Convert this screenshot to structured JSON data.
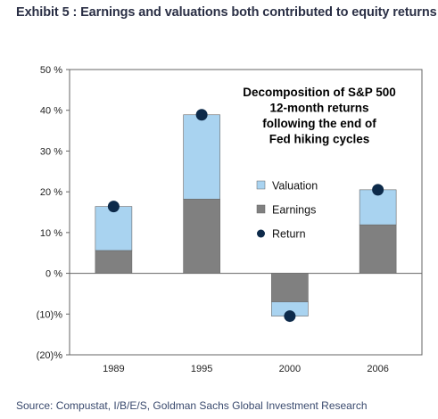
{
  "exhibit_title": "Exhibit 5 : Earnings and valuations both contributed to equity returns",
  "source": "Source: Compustat, I/B/E/S, Goldman Sachs Global Investment Research",
  "chart_data": {
    "type": "bar",
    "stacked": true,
    "annotation": [
      "Decomposition of S&P 500",
      "12-month returns",
      "following the end of",
      "Fed hiking cycles"
    ],
    "categories": [
      "1989",
      "1995",
      "2000",
      "2006"
    ],
    "series": [
      {
        "name": "Valuation",
        "values": [
          10.8,
          20.7,
          -3.5,
          8.6
        ],
        "color": "#a9d3f0"
      },
      {
        "name": "Earnings",
        "values": [
          5.6,
          18.2,
          -7.0,
          11.9
        ],
        "color": "#808080"
      }
    ],
    "markers": {
      "name": "Return",
      "values": [
        16.4,
        38.9,
        -10.5,
        20.5
      ],
      "color": "#0d2a4a"
    },
    "ylim": [
      -20,
      50
    ],
    "yticks": [
      {
        "value": 50,
        "label": "50 %"
      },
      {
        "value": 40,
        "label": "40 %"
      },
      {
        "value": 30,
        "label": "30 %"
      },
      {
        "value": 20,
        "label": "20 %"
      },
      {
        "value": 10,
        "label": "10 %"
      },
      {
        "value": 0,
        "label": "0 %"
      },
      {
        "value": -10,
        "label": "(10)%"
      },
      {
        "value": -20,
        "label": "(20)%"
      }
    ],
    "legend_position": "right",
    "grid": false
  }
}
